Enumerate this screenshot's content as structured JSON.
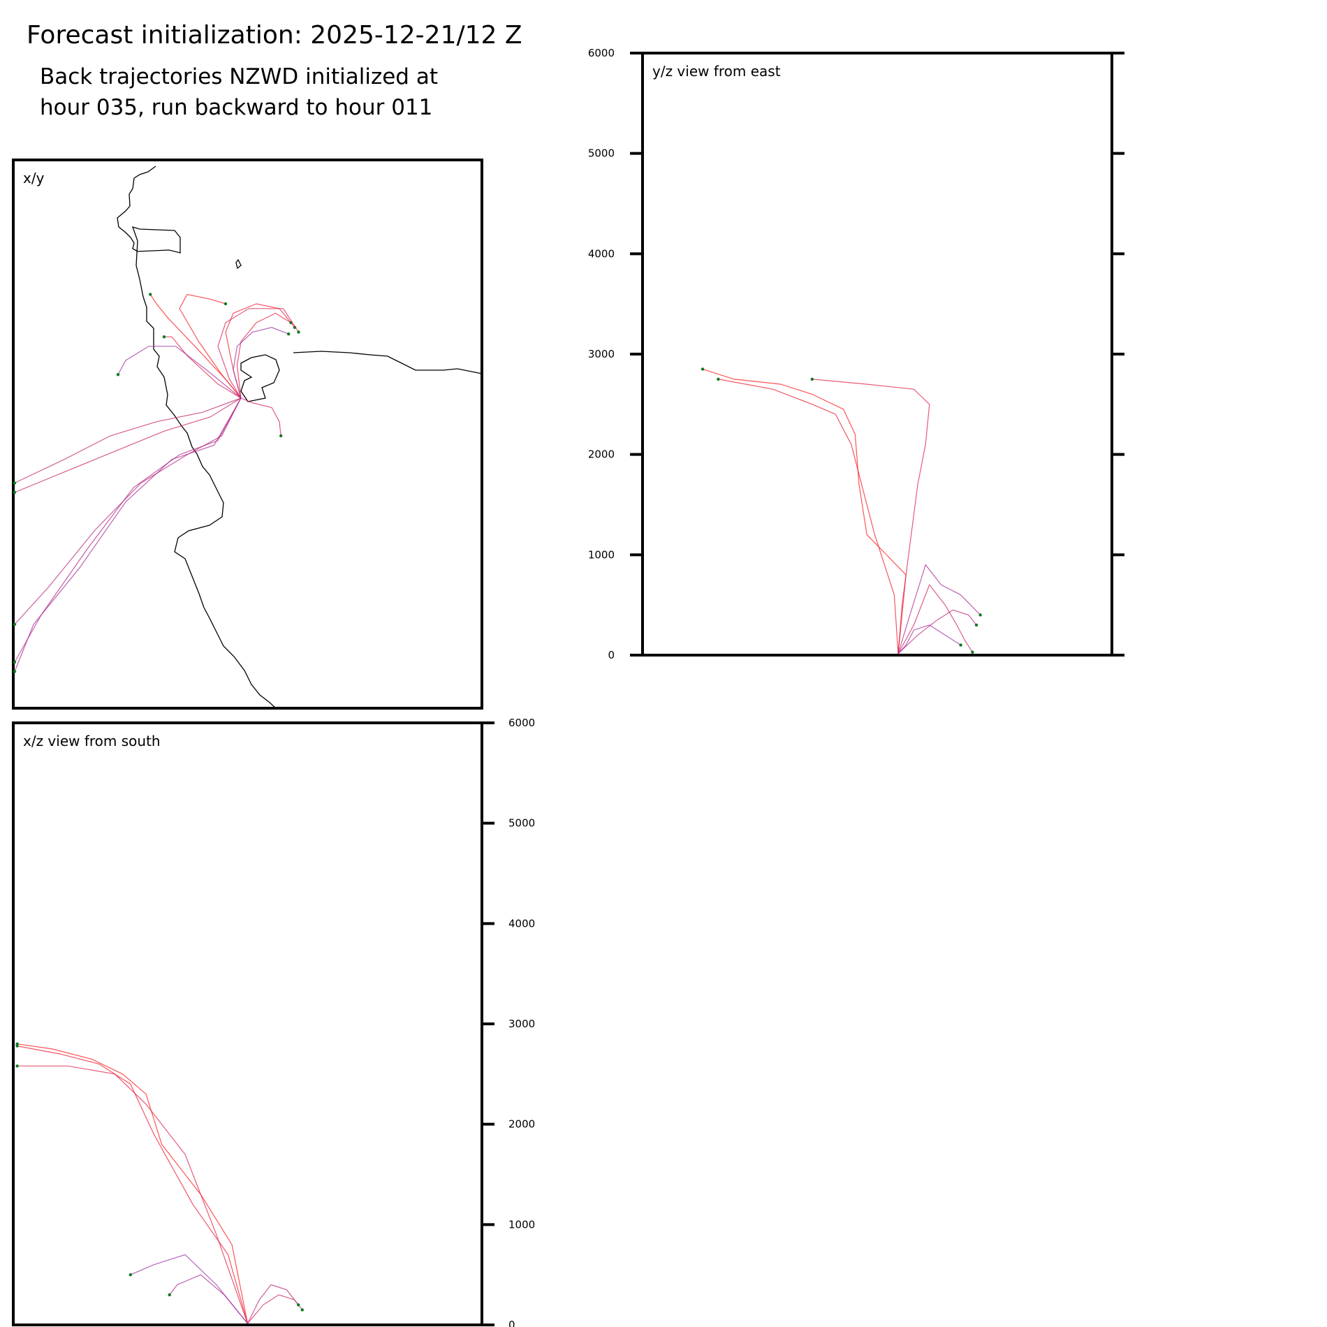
{
  "header": {
    "title": "Forecast initialization: 2025-12-21/12 Z",
    "subtitle_line1": "Back trajectories NZWD initialized at",
    "subtitle_line2": "hour 035, run backward to hour 011"
  },
  "colors": {
    "trajectory_early": "#ff1a1a",
    "trajectory_late": "#9b30a8",
    "start_marker": "#0b7a1e",
    "coastline": "#000000",
    "frame": "#000000"
  },
  "chart_data": [
    {
      "type": "line",
      "panel": "x/y",
      "title": "x/y",
      "description_kind": "plan view map with coastline",
      "source_point": {
        "x": 0.0,
        "y": 0.0
      },
      "xlim": [
        -300,
        300
      ],
      "ylim": [
        -300,
        300
      ],
      "series": [
        {
          "name": "traj-a",
          "x": [
            0,
            -20,
            -60,
            -95,
            -110,
            -118
          ],
          "y": [
            0,
            20,
            55,
            85,
            100,
            110
          ]
        },
        {
          "name": "traj-b",
          "x": [
            0,
            -25,
            -55,
            -80,
            -70,
            -40,
            -20
          ],
          "y": [
            0,
            25,
            60,
            95,
            110,
            105,
            100
          ]
        },
        {
          "name": "traj-c",
          "x": [
            0,
            -10,
            -20,
            -10,
            20,
            50,
            70
          ],
          "y": [
            0,
            30,
            70,
            90,
            100,
            95,
            75
          ]
        },
        {
          "name": "traj-d",
          "x": [
            0,
            -5,
            0,
            20,
            45,
            65
          ],
          "y": [
            0,
            35,
            60,
            80,
            90,
            80
          ]
        },
        {
          "name": "traj-e",
          "x": [
            0,
            -30,
            -70,
            -90,
            -100
          ],
          "y": [
            0,
            15,
            45,
            65,
            65
          ]
        },
        {
          "name": "traj-f",
          "x": [
            0,
            -15,
            -30,
            -20,
            10,
            55,
            75
          ],
          "y": [
            0,
            20,
            55,
            80,
            95,
            95,
            70
          ]
        },
        {
          "name": "traj-g",
          "x": [
            0,
            15,
            40,
            50,
            52
          ],
          "y": [
            0,
            -5,
            -10,
            -25,
            -40
          ]
        },
        {
          "name": "traj-h",
          "x": [
            0,
            -40,
            -100,
            -160,
            -220,
            -295
          ],
          "y": [
            0,
            -20,
            -35,
            -55,
            -75,
            -100
          ]
        },
        {
          "name": "traj-i",
          "x": [
            0,
            -50,
            -110,
            -170,
            -230,
            -295
          ],
          "y": [
            0,
            -15,
            -25,
            -40,
            -65,
            -90
          ]
        },
        {
          "name": "traj-j",
          "x": [
            0,
            -25,
            -70,
            -130,
            -190,
            -250,
            -295
          ],
          "y": [
            0,
            -40,
            -60,
            -90,
            -140,
            -200,
            -240
          ]
        },
        {
          "name": "traj-k",
          "x": [
            0,
            -30,
            -80,
            -140,
            -200,
            -260,
            -295
          ],
          "y": [
            0,
            -45,
            -60,
            -95,
            -160,
            -230,
            -280
          ]
        },
        {
          "name": "traj-l",
          "x": [
            0,
            -35,
            -90,
            -150,
            -210,
            -270,
            -295
          ],
          "y": [
            0,
            -50,
            -65,
            -110,
            -180,
            -240,
            -290
          ]
        },
        {
          "name": "traj-m",
          "x": [
            0,
            -45,
            -85,
            -120,
            -150,
            -160
          ],
          "y": [
            0,
            30,
            55,
            55,
            40,
            25
          ]
        },
        {
          "name": "traj-n",
          "x": [
            0,
            -10,
            -5,
            15,
            40,
            62
          ],
          "y": [
            0,
            30,
            55,
            70,
            75,
            68
          ]
        }
      ]
    },
    {
      "type": "line",
      "panel": "y/z view from east",
      "title": "y/z view from east",
      "xlim": [
        -300,
        300
      ],
      "ylim": [
        0,
        6000
      ],
      "yticks": [
        "0",
        "1000",
        "2000",
        "3000",
        "4000",
        "5000",
        "6000"
      ],
      "series": [
        {
          "name": "traj-h",
          "x": [
            0,
            10,
            -40,
            -50,
            -55,
            -70,
            -110,
            -150,
            -210,
            -250
          ],
          "y": [
            0,
            800,
            1200,
            1700,
            2200,
            2450,
            2600,
            2700,
            2750,
            2850
          ]
        },
        {
          "name": "traj-k",
          "x": [
            0,
            -5,
            -30,
            -60,
            -80,
            -110,
            -160,
            -230
          ],
          "y": [
            0,
            600,
            1200,
            2100,
            2400,
            2500,
            2650,
            2750
          ]
        },
        {
          "name": "traj-b",
          "x": [
            0,
            5,
            15,
            25,
            35,
            40,
            20,
            -40,
            -110
          ],
          "y": [
            0,
            500,
            1100,
            1700,
            2100,
            2500,
            2650,
            2700,
            2750
          ]
        },
        {
          "name": "traj-c",
          "x": [
            0,
            20,
            40,
            60,
            75,
            85,
            95
          ],
          "y": [
            0,
            300,
            700,
            500,
            300,
            150,
            30
          ]
        },
        {
          "name": "traj-d",
          "x": [
            0,
            25,
            50,
            70,
            90,
            100
          ],
          "y": [
            0,
            200,
            350,
            450,
            400,
            300
          ]
        },
        {
          "name": "traj-f",
          "x": [
            0,
            15,
            35,
            55,
            80,
            105
          ],
          "y": [
            0,
            400,
            900,
            700,
            600,
            400
          ]
        },
        {
          "name": "traj-g",
          "x": [
            0,
            10,
            20,
            40,
            60,
            80
          ],
          "y": [
            0,
            100,
            250,
            300,
            200,
            100
          ]
        }
      ]
    },
    {
      "type": "line",
      "panel": "x/z view from south",
      "title": "x/z view from south",
      "xlim": [
        -300,
        300
      ],
      "ylim": [
        0,
        6000
      ],
      "yticks": [
        "0",
        "1000",
        "2000",
        "3000",
        "4000",
        "5000",
        "6000"
      ],
      "series": [
        {
          "name": "traj-h",
          "x": [
            0,
            -20,
            -60,
            -110,
            -130,
            -160,
            -200,
            -250,
            -295
          ],
          "y": [
            0,
            800,
            1300,
            1800,
            2300,
            2500,
            2650,
            2750,
            2800
          ]
        },
        {
          "name": "traj-i",
          "x": [
            0,
            -25,
            -70,
            -120,
            -150,
            -190,
            -240,
            -295
          ],
          "y": [
            0,
            700,
            1200,
            1900,
            2400,
            2600,
            2700,
            2780
          ]
        },
        {
          "name": "traj-j",
          "x": [
            0,
            -40,
            -80,
            -130,
            -170,
            -230,
            -295
          ],
          "y": [
            0,
            900,
            1700,
            2200,
            2500,
            2580,
            2580
          ]
        },
        {
          "name": "traj-c",
          "x": [
            0,
            20,
            40,
            60,
            70
          ],
          "y": [
            0,
            200,
            300,
            250,
            150
          ]
        },
        {
          "name": "traj-d",
          "x": [
            0,
            15,
            30,
            50,
            65
          ],
          "y": [
            0,
            250,
            400,
            350,
            200
          ]
        },
        {
          "name": "traj-e",
          "x": [
            0,
            -30,
            -60,
            -90,
            -100
          ],
          "y": [
            0,
            300,
            500,
            400,
            300
          ]
        },
        {
          "name": "traj-m",
          "x": [
            0,
            -40,
            -80,
            -120,
            -150
          ],
          "y": [
            0,
            400,
            700,
            600,
            500
          ]
        }
      ]
    }
  ]
}
